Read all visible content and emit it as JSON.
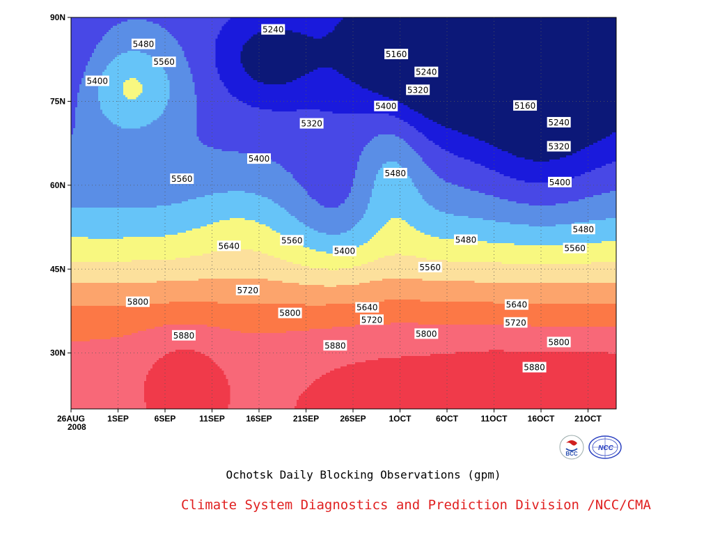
{
  "chart_data": {
    "type": "heatmap",
    "subtype": "filled-contour",
    "title": "Ochotsk Daily Blocking Observations (gpm)",
    "credit": "Climate System Diagnostics and Prediction Division /NCC/CMA",
    "x_ticks": [
      "26AUG",
      "1SEP",
      "6SEP",
      "11SEP",
      "16SEP",
      "21SEP",
      "26SEP",
      "1OCT",
      "6OCT",
      "11OCT",
      "16OCT",
      "21OCT"
    ],
    "x_year_label": "2008",
    "y_ticks": [
      "90N",
      "75N",
      "60N",
      "45N",
      "30N"
    ],
    "x_range_days": [
      0,
      58
    ],
    "y_range_lat": [
      20,
      90
    ],
    "grid": "dotted",
    "contour_levels": [
      5160,
      5240,
      5320,
      5400,
      5480,
      5560,
      5640,
      5720,
      5800,
      5880
    ],
    "fill_colors": [
      "#0c1878",
      "#1a1adc",
      "#4848e6",
      "#5a8ee6",
      "#66c4f8",
      "#f8f880",
      "#fce09c",
      "#fca46c",
      "#fc7846",
      "#f86878",
      "#f03a4a"
    ],
    "line_color": "#000000",
    "contour_labels": [
      {
        "text": "5480",
        "day": 7.7,
        "lat": 85.2
      },
      {
        "text": "5560",
        "day": 9.9,
        "lat": 82.0
      },
      {
        "text": "5400",
        "day": 2.8,
        "lat": 78.6
      },
      {
        "text": "5240",
        "day": 21.5,
        "lat": 87.8
      },
      {
        "text": "5160",
        "day": 34.6,
        "lat": 83.4
      },
      {
        "text": "5240",
        "day": 37.8,
        "lat": 80.2
      },
      {
        "text": "5320",
        "day": 36.9,
        "lat": 77.0
      },
      {
        "text": "5400",
        "day": 33.5,
        "lat": 74.1
      },
      {
        "text": "5160",
        "day": 48.3,
        "lat": 74.2
      },
      {
        "text": "5240",
        "day": 51.9,
        "lat": 71.2
      },
      {
        "text": "5320",
        "day": 25.6,
        "lat": 71.0
      },
      {
        "text": "5320",
        "day": 51.9,
        "lat": 66.9
      },
      {
        "text": "5400",
        "day": 20.0,
        "lat": 64.7
      },
      {
        "text": "5480",
        "day": 34.5,
        "lat": 62.1
      },
      {
        "text": "5560",
        "day": 11.8,
        "lat": 61.1
      },
      {
        "text": "5400",
        "day": 52.0,
        "lat": 60.5
      },
      {
        "text": "5480",
        "day": 54.5,
        "lat": 52.1
      },
      {
        "text": "5480",
        "day": 42.0,
        "lat": 50.2
      },
      {
        "text": "5640",
        "day": 16.8,
        "lat": 49.1
      },
      {
        "text": "5560",
        "day": 23.5,
        "lat": 50.1
      },
      {
        "text": "5400",
        "day": 29.1,
        "lat": 48.2
      },
      {
        "text": "5560",
        "day": 53.6,
        "lat": 48.7
      },
      {
        "text": "5560",
        "day": 38.2,
        "lat": 45.3
      },
      {
        "text": "5720",
        "day": 18.8,
        "lat": 41.2
      },
      {
        "text": "5640",
        "day": 47.4,
        "lat": 38.6
      },
      {
        "text": "5800",
        "day": 7.1,
        "lat": 39.1
      },
      {
        "text": "5640",
        "day": 31.5,
        "lat": 38.1
      },
      {
        "text": "5800",
        "day": 23.3,
        "lat": 37.1
      },
      {
        "text": "5720",
        "day": 32.0,
        "lat": 35.9
      },
      {
        "text": "5720",
        "day": 47.3,
        "lat": 35.4
      },
      {
        "text": "5800",
        "day": 51.9,
        "lat": 31.9
      },
      {
        "text": "5880",
        "day": 12.0,
        "lat": 33.1
      },
      {
        "text": "5800",
        "day": 37.8,
        "lat": 33.4
      },
      {
        "text": "5880",
        "day": 28.1,
        "lat": 31.3
      },
      {
        "text": "5880",
        "day": 49.3,
        "lat": 27.4
      }
    ]
  },
  "logos": [
    {
      "name": "BCC",
      "text": "BCC",
      "accent": "#2a50b0"
    },
    {
      "name": "NCC",
      "text": "NCC",
      "accent": "#2a40c0"
    }
  ],
  "colors": {
    "credit": "#e02020",
    "title": "#000000"
  }
}
